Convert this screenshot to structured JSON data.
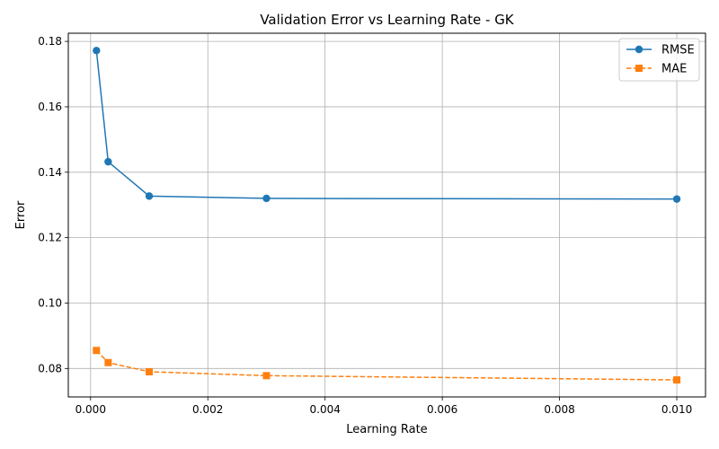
{
  "chart_data": {
    "type": "line",
    "title": "Validation Error vs Learning Rate - GK",
    "xlabel": "Learning Rate",
    "ylabel": "Error",
    "xlim": [
      -0.00038,
      0.01049
    ],
    "ylim": [
      0.0713,
      0.1825
    ],
    "xticks": [
      0.0,
      0.002,
      0.004,
      0.006,
      0.008,
      0.01
    ],
    "xtick_labels": [
      "0.000",
      "0.002",
      "0.004",
      "0.006",
      "0.008",
      "0.010"
    ],
    "yticks": [
      0.08,
      0.1,
      0.12,
      0.14,
      0.16,
      0.18
    ],
    "ytick_labels": [
      "0.08",
      "0.10",
      "0.12",
      "0.14",
      "0.16",
      "0.18"
    ],
    "grid": true,
    "legend_position": "top-right",
    "x": [
      0.0001,
      0.0003,
      0.001,
      0.003,
      0.01
    ],
    "series": [
      {
        "name": "RMSE",
        "values": [
          0.1772,
          0.1432,
          0.1327,
          0.132,
          0.1318
        ],
        "color": "#1f77b4",
        "marker": "circle",
        "linestyle": "solid"
      },
      {
        "name": "MAE",
        "values": [
          0.0855,
          0.0818,
          0.079,
          0.0778,
          0.0765
        ],
        "color": "#ff7f0e",
        "marker": "square",
        "linestyle": "dashed"
      }
    ]
  }
}
